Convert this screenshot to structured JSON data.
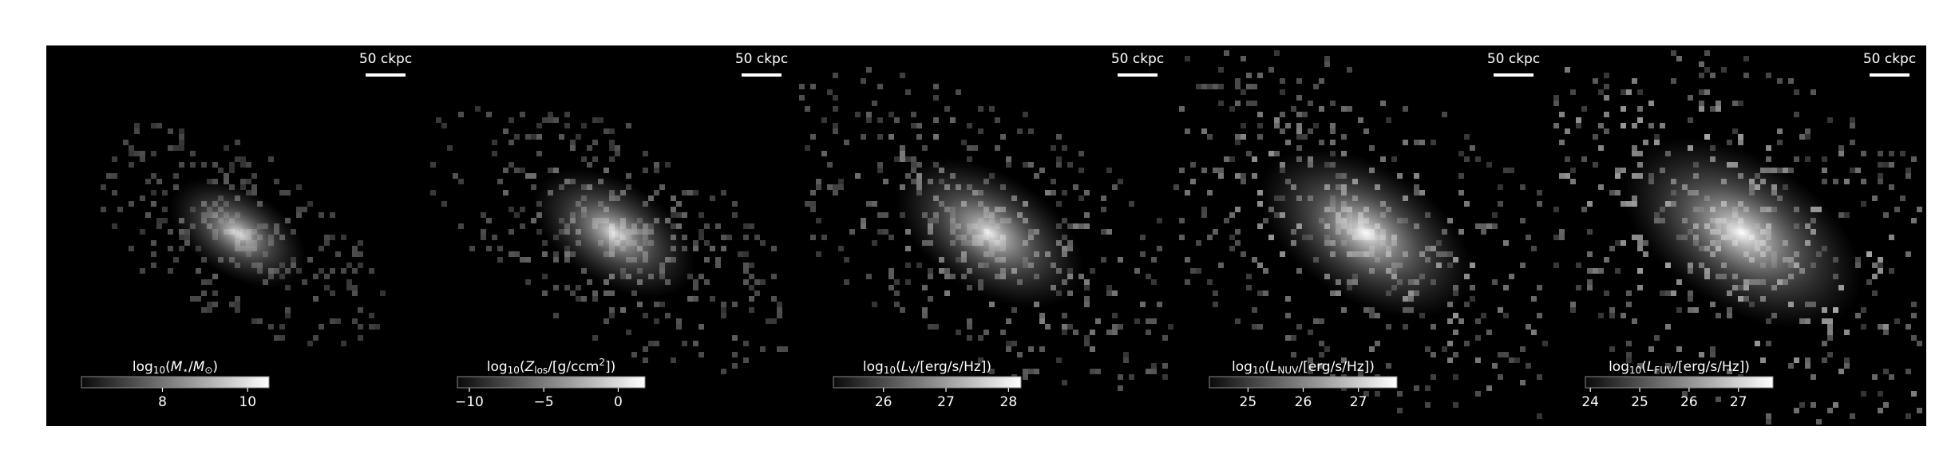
{
  "panels": [
    {
      "scale_label": "50 ckpc",
      "colorbar": {
        "label": [
          {
            "text": "log"
          },
          {
            "text": "10",
            "sub": true
          },
          {
            "text": "("
          },
          {
            "text": "M",
            "italic": true
          },
          {
            "text": "⋆",
            "sub": true
          },
          {
            "text": "/"
          },
          {
            "text": "M",
            "italic": true
          },
          {
            "text": "⊙",
            "sub": true
          },
          {
            "text": ")"
          }
        ],
        "lim": [
          6.1,
          10.5
        ],
        "ticks": [
          8,
          10
        ]
      }
    },
    {
      "scale_label": "50 ckpc",
      "colorbar": {
        "label": [
          {
            "text": "log"
          },
          {
            "text": "10",
            "sub": true
          },
          {
            "text": "("
          },
          {
            "text": "Z",
            "italic": true
          },
          {
            "text": "los",
            "sub": true
          },
          {
            "text": "/[g/ccm"
          },
          {
            "text": "2",
            "sup": true
          },
          {
            "text": "])"
          }
        ],
        "lim": [
          -10.8,
          1.8
        ],
        "ticks": [
          {
            "value": -10,
            "label": "−10"
          },
          {
            "value": -5,
            "label": "−5"
          },
          0
        ]
      }
    },
    {
      "scale_label": "50 ckpc",
      "colorbar": {
        "label": [
          {
            "text": "log"
          },
          {
            "text": "10",
            "sub": true
          },
          {
            "text": "("
          },
          {
            "text": "L",
            "italic": true
          },
          {
            "text": "V",
            "sub": true
          },
          {
            "text": "/[erg/s/Hz])"
          }
        ],
        "lim": [
          25.2,
          28.2
        ],
        "ticks": [
          26,
          27,
          28
        ]
      }
    },
    {
      "scale_label": "50 ckpc",
      "colorbar": {
        "label": [
          {
            "text": "log"
          },
          {
            "text": "10",
            "sub": true
          },
          {
            "text": "("
          },
          {
            "text": "L",
            "italic": true
          },
          {
            "text": "NUV",
            "sub": true
          },
          {
            "text": "/[erg/s/Hz])"
          }
        ],
        "lim": [
          24.3,
          27.7
        ],
        "ticks": [
          25,
          26,
          27
        ]
      }
    },
    {
      "scale_label": "50 ckpc",
      "colorbar": {
        "label": [
          {
            "text": "log"
          },
          {
            "text": "10",
            "sub": true
          },
          {
            "text": "("
          },
          {
            "text": "L",
            "italic": true
          },
          {
            "text": "FUV",
            "sub": true
          },
          {
            "text": "/[erg/s/Hz])"
          }
        ],
        "lim": [
          23.9,
          27.7
        ],
        "ticks": [
          24,
          25,
          26,
          27
        ]
      }
    }
  ]
}
